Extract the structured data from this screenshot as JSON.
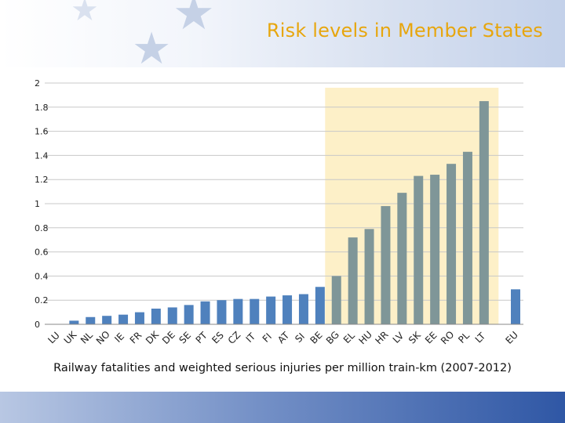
{
  "slide": {
    "title": "Risk levels in Member States",
    "caption": "Railway fatalities and weighted serious injuries per million train-km (2007-2012)"
  },
  "colors": {
    "title": "#e7a60e",
    "low_bar": "#4f81bd",
    "high_bar": "#7f9698",
    "highlight": "#fdf0c8"
  },
  "chart_data": {
    "type": "bar",
    "title": "",
    "xlabel": "",
    "ylabel": "",
    "ylim": [
      0,
      2
    ],
    "yticks": [
      0,
      0.2,
      0.4,
      0.6,
      0.8,
      1,
      1.2,
      1.4,
      1.6,
      1.8,
      2
    ],
    "ytick_labels": [
      "0",
      "0.2",
      "0.4",
      "0.6",
      "0.8",
      "1",
      "1.2",
      "1.4",
      "1.6",
      "1.8",
      "2"
    ],
    "grid": true,
    "categories": [
      "LU",
      "UK",
      "NL",
      "NO",
      "IE",
      "FR",
      "DK",
      "DE",
      "SE",
      "PT",
      "ES",
      "CZ",
      "IT",
      "FI",
      "AT",
      "SI",
      "BE",
      "BG",
      "EL",
      "HU",
      "HR",
      "LV",
      "SK",
      "EE",
      "RO",
      "PL",
      "LT",
      "EU"
    ],
    "values": [
      0.0,
      0.03,
      0.06,
      0.07,
      0.08,
      0.1,
      0.13,
      0.14,
      0.16,
      0.19,
      0.2,
      0.21,
      0.21,
      0.23,
      0.24,
      0.25,
      0.31,
      0.4,
      0.72,
      0.79,
      0.98,
      1.09,
      1.23,
      1.24,
      1.33,
      1.43,
      1.85,
      0.29
    ],
    "highlighted_categories": [
      "BG",
      "EL",
      "HU",
      "HR",
      "LV",
      "SK",
      "EE",
      "RO",
      "PL",
      "LT"
    ]
  }
}
